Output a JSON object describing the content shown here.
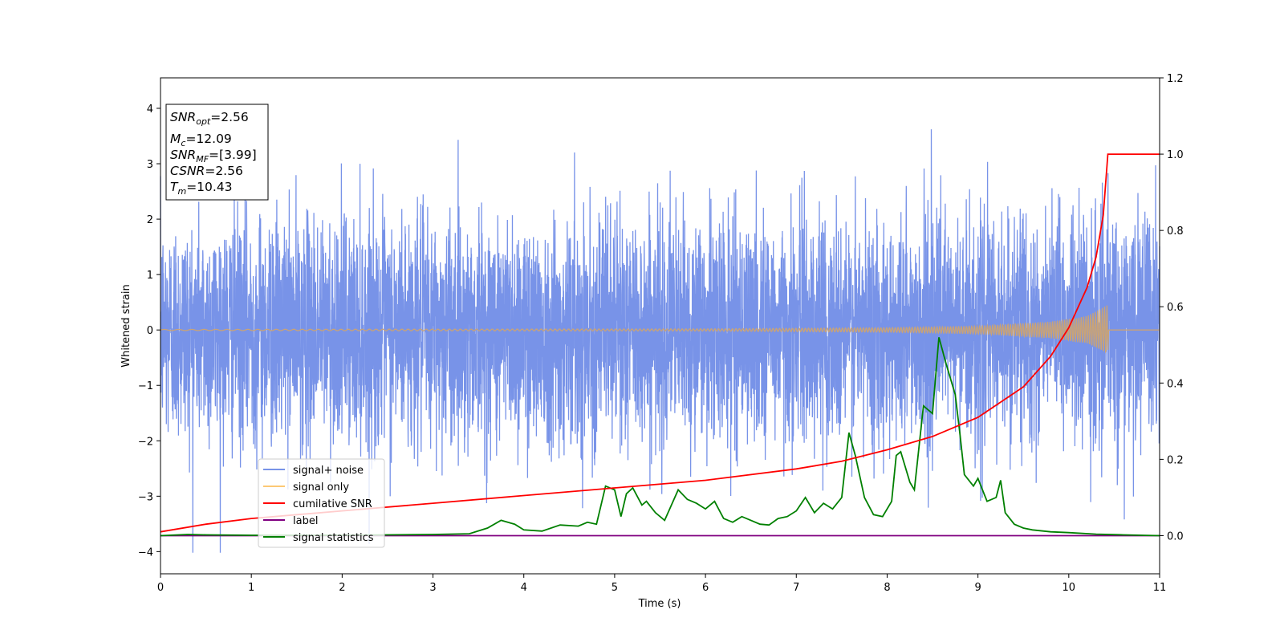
{
  "chart_data": {
    "type": "line",
    "xlabel": "Time (s)",
    "ylabel": "Whitened strain",
    "xlim": [
      0,
      11
    ],
    "ylim": [
      -4.4,
      4.55
    ],
    "ylim_right": [
      -0.1,
      1.2
    ],
    "xticks": [
      "0",
      "1",
      "2",
      "3",
      "4",
      "5",
      "6",
      "7",
      "8",
      "9",
      "10",
      "11"
    ],
    "yticks": [
      "−4",
      "−3",
      "−2",
      "−1",
      "0",
      "1",
      "2",
      "3",
      "4"
    ],
    "yticks_right": [
      "0.0",
      "0.2",
      "0.4",
      "0.6",
      "0.8",
      "1.0",
      "1.2"
    ],
    "info_box": [
      {
        "base": "SNR",
        "sub": "opt",
        "rest": "=2.56"
      },
      {
        "base": "M",
        "sub": "c",
        "rest": "=12.09"
      },
      {
        "base": "SNR",
        "sub": "MF",
        "rest": "=[3.99]"
      },
      {
        "base": "CSNR",
        "sub": "",
        "rest": "=2.56"
      },
      {
        "base": "T",
        "sub": "m",
        "rest": "=10.43"
      }
    ],
    "legend": [
      "signal+ noise",
      "signal only",
      "cumilative SNR",
      "label",
      "signal statistics"
    ],
    "legend_position": "lower-left",
    "grid": false,
    "colors": {
      "signal_noise": "#7893e8",
      "signal_only": "#fcc875",
      "cumulative_snr": "#ff0000",
      "label": "#800080",
      "signal_statistics": "#008000"
    },
    "series": [
      {
        "name": "signal+ noise",
        "axis": "left",
        "description_values": {
          "approx_std": 1.0,
          "min": -4.02,
          "max": 4.18,
          "x_range": [
            0,
            11
          ]
        }
      },
      {
        "name": "signal only",
        "axis": "left",
        "envelope": {
          "x": [
            0,
            6,
            8,
            9,
            9.8,
            10.2,
            10.43,
            10.44,
            11
          ],
          "amp": [
            0.01,
            0.02,
            0.04,
            0.07,
            0.15,
            0.25,
            0.45,
            0,
            0
          ]
        }
      },
      {
        "name": "cumilative SNR",
        "axis": "right",
        "x": [
          0,
          0.5,
          1,
          2,
          3,
          4,
          5,
          6,
          7,
          7.5,
          8,
          8.5,
          9,
          9.5,
          9.8,
          10,
          10.2,
          10.3,
          10.38,
          10.43,
          10.44,
          11
        ],
        "y": [
          0.01,
          0.03,
          0.045,
          0.065,
          0.085,
          0.105,
          0.125,
          0.145,
          0.175,
          0.195,
          0.225,
          0.26,
          0.31,
          0.39,
          0.47,
          0.545,
          0.65,
          0.73,
          0.84,
          1.0,
          1.0,
          1.0
        ]
      },
      {
        "name": "label",
        "axis": "right",
        "x": [
          0,
          11
        ],
        "y": [
          0.0,
          0.0
        ]
      },
      {
        "name": "signal statistics",
        "axis": "right",
        "x": [
          0,
          0.3,
          0.5,
          1,
          2,
          3,
          3.4,
          3.6,
          3.75,
          3.9,
          4.0,
          4.2,
          4.4,
          4.6,
          4.7,
          4.8,
          4.9,
          5.0,
          5.07,
          5.13,
          5.2,
          5.3,
          5.35,
          5.45,
          5.55,
          5.7,
          5.8,
          5.9,
          6.0,
          6.1,
          6.2,
          6.3,
          6.4,
          6.5,
          6.6,
          6.7,
          6.8,
          6.9,
          7.0,
          7.1,
          7.2,
          7.3,
          7.4,
          7.5,
          7.58,
          7.65,
          7.75,
          7.85,
          7.95,
          8.05,
          8.1,
          8.15,
          8.25,
          8.3,
          8.4,
          8.5,
          8.57,
          8.65,
          8.75,
          8.8,
          8.85,
          8.95,
          9.0,
          9.1,
          9.2,
          9.25,
          9.3,
          9.4,
          9.5,
          9.6,
          9.8,
          10.0,
          10.3,
          10.6,
          11
        ],
        "y": [
          0.0,
          0.003,
          0.002,
          0.001,
          0.001,
          0.003,
          0.005,
          0.02,
          0.04,
          0.03,
          0.015,
          0.012,
          0.028,
          0.025,
          0.035,
          0.03,
          0.13,
          0.12,
          0.05,
          0.11,
          0.125,
          0.08,
          0.09,
          0.06,
          0.04,
          0.12,
          0.095,
          0.085,
          0.07,
          0.09,
          0.045,
          0.035,
          0.05,
          0.04,
          0.03,
          0.028,
          0.045,
          0.05,
          0.065,
          0.1,
          0.06,
          0.085,
          0.07,
          0.1,
          0.27,
          0.21,
          0.1,
          0.055,
          0.05,
          0.09,
          0.21,
          0.22,
          0.14,
          0.12,
          0.34,
          0.32,
          0.52,
          0.45,
          0.37,
          0.27,
          0.16,
          0.13,
          0.15,
          0.09,
          0.1,
          0.145,
          0.06,
          0.03,
          0.02,
          0.015,
          0.01,
          0.008,
          0.004,
          0.002,
          0.0
        ]
      }
    ]
  }
}
